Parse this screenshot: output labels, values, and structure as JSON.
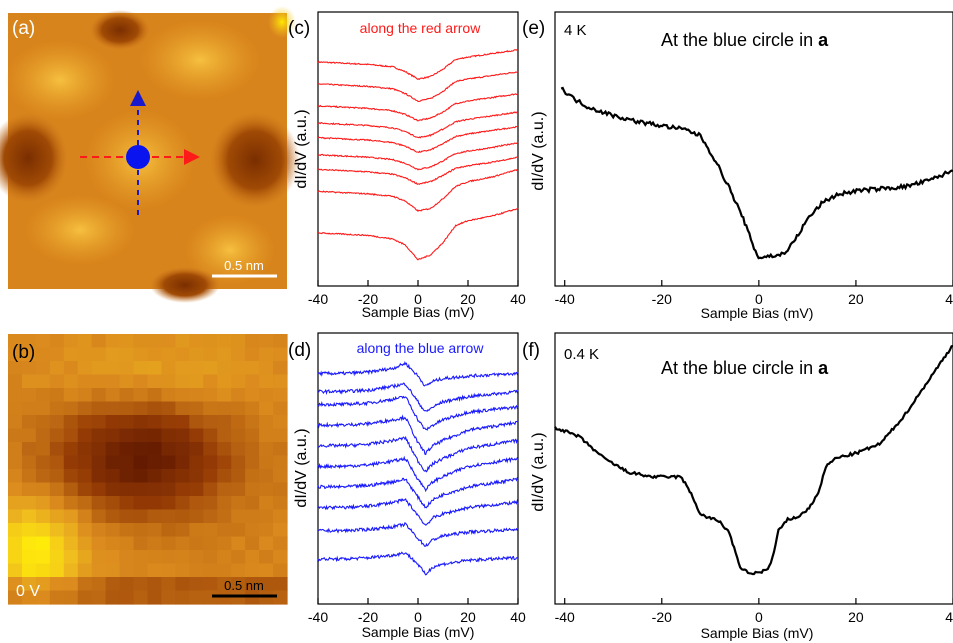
{
  "panels": {
    "a": {
      "label": "(a)",
      "scalebar": "0.5 nm"
    },
    "b": {
      "label": "(b)",
      "scalebar": "0.5 nm",
      "bias": "0 V"
    },
    "c": {
      "label": "(c)",
      "annotation": "along the red arrow",
      "color": "#ff1a1a"
    },
    "d": {
      "label": "(d)",
      "annotation": "along the blue arrow",
      "color": "#1a1aff"
    },
    "e": {
      "label": "(e)",
      "temperature": "4 K",
      "title_prefix": "At the blue circle in ",
      "title_bold": "a"
    },
    "f": {
      "label": "(f)",
      "temperature": "0.4 K",
      "title_prefix": "At the blue circle in ",
      "title_bold": "a"
    }
  },
  "axes": {
    "xlabel": "Sample Bias (mV)",
    "ylabel": "dI/dV (a.u.)",
    "small_ticks": [
      "-40",
      "-20",
      "0",
      "20",
      "40"
    ],
    "large_ticks": [
      "-40",
      "-20",
      "0",
      "20",
      "40"
    ]
  },
  "chart_data": [
    {
      "panel": "c",
      "type": "line",
      "xlabel": "Sample Bias (mV)",
      "ylabel": "dI/dV (a.u.)",
      "xlim": [
        -40,
        40
      ],
      "note": "vertically offset spectra, arbitrary units",
      "x": [
        -40,
        -30,
        -20,
        -10,
        -5,
        0,
        5,
        10,
        15,
        20,
        30,
        40
      ],
      "series": [
        {
          "values": [
            8.6,
            8.55,
            8.5,
            8.4,
            8.2,
            7.9,
            8.0,
            8.3,
            8.7,
            8.8,
            8.95,
            9.1
          ]
        },
        {
          "values": [
            7.7,
            7.65,
            7.6,
            7.5,
            7.3,
            7.0,
            7.1,
            7.4,
            7.8,
            7.9,
            8.05,
            8.2
          ]
        },
        {
          "values": [
            6.8,
            6.75,
            6.7,
            6.6,
            6.45,
            6.2,
            6.3,
            6.55,
            6.9,
            7.0,
            7.15,
            7.3
          ]
        },
        {
          "values": [
            6.1,
            6.05,
            6.0,
            5.9,
            5.75,
            5.5,
            5.6,
            5.85,
            6.15,
            6.25,
            6.4,
            6.55
          ]
        },
        {
          "values": [
            5.5,
            5.45,
            5.4,
            5.3,
            5.15,
            4.9,
            5.0,
            5.25,
            5.55,
            5.65,
            5.8,
            5.95
          ]
        },
        {
          "values": [
            4.8,
            4.75,
            4.7,
            4.6,
            4.45,
            4.2,
            4.3,
            4.55,
            4.85,
            4.95,
            5.1,
            5.3
          ]
        },
        {
          "values": [
            4.2,
            4.15,
            4.1,
            4.0,
            3.85,
            3.6,
            3.7,
            3.95,
            4.25,
            4.35,
            4.5,
            4.7
          ]
        },
        {
          "values": [
            3.3,
            3.25,
            3.2,
            3.1,
            2.9,
            2.5,
            2.6,
            3.0,
            3.5,
            3.7,
            3.9,
            4.2
          ]
        },
        {
          "values": [
            1.6,
            1.55,
            1.5,
            1.35,
            1.1,
            0.5,
            0.7,
            1.2,
            1.9,
            2.1,
            2.3,
            2.6
          ]
        }
      ]
    },
    {
      "panel": "d",
      "type": "line",
      "xlabel": "Sample Bias (mV)",
      "ylabel": "dI/dV (a.u.)",
      "xlim": [
        -40,
        40
      ],
      "note": "vertically offset spectra, arbitrary units",
      "x": [
        -40,
        -30,
        -20,
        -10,
        -5,
        0,
        3,
        6,
        10,
        20,
        30,
        40
      ],
      "series": [
        {
          "values": [
            9.4,
            9.4,
            9.45,
            9.6,
            9.8,
            9.3,
            8.9,
            9.1,
            9.2,
            9.3,
            9.35,
            9.4
          ]
        },
        {
          "values": [
            8.7,
            8.7,
            8.75,
            8.9,
            9.0,
            8.3,
            7.9,
            8.1,
            8.3,
            8.5,
            8.6,
            8.7
          ]
        },
        {
          "values": [
            8.2,
            8.2,
            8.25,
            8.4,
            8.5,
            7.6,
            7.2,
            7.4,
            7.6,
            7.9,
            8.0,
            8.1
          ]
        },
        {
          "values": [
            7.4,
            7.4,
            7.45,
            7.6,
            7.7,
            6.7,
            6.3,
            6.6,
            6.8,
            7.2,
            7.35,
            7.5
          ]
        },
        {
          "values": [
            6.6,
            6.6,
            6.65,
            6.8,
            6.9,
            6.0,
            5.6,
            5.9,
            6.1,
            6.5,
            6.65,
            6.8
          ]
        },
        {
          "values": [
            5.8,
            5.8,
            5.85,
            6.0,
            6.1,
            5.3,
            4.9,
            5.2,
            5.4,
            5.8,
            5.95,
            6.1
          ]
        },
        {
          "values": [
            5.0,
            5.0,
            5.05,
            5.2,
            5.3,
            4.6,
            4.2,
            4.5,
            4.7,
            5.0,
            5.15,
            5.3
          ]
        },
        {
          "values": [
            4.2,
            4.2,
            4.25,
            4.4,
            4.5,
            3.9,
            3.5,
            3.8,
            3.95,
            4.2,
            4.3,
            4.4
          ]
        },
        {
          "values": [
            3.3,
            3.3,
            3.35,
            3.45,
            3.55,
            3.0,
            2.7,
            2.95,
            3.1,
            3.25,
            3.3,
            3.35
          ]
        },
        {
          "values": [
            2.2,
            2.2,
            2.25,
            2.35,
            2.45,
            2.0,
            1.6,
            1.9,
            2.0,
            2.15,
            2.2,
            2.25
          ]
        }
      ]
    },
    {
      "panel": "e",
      "type": "line",
      "xlabel": "Sample Bias (mV)",
      "ylabel": "dI/dV (a.u.)",
      "xlim": [
        -42,
        40
      ],
      "x": [
        -41,
        -38,
        -35,
        -30,
        -25,
        -20,
        -15,
        -12,
        -9,
        -6,
        -3,
        -1,
        0,
        2,
        4,
        6,
        8,
        10,
        13,
        16,
        20,
        25,
        30,
        35,
        40
      ],
      "values": [
        8.9,
        8.3,
        7.9,
        7.5,
        7.2,
        7.0,
        6.8,
        6.5,
        5.3,
        3.9,
        2.3,
        1.0,
        0.5,
        0.6,
        0.6,
        0.9,
        1.6,
        2.4,
        3.2,
        3.6,
        3.8,
        3.9,
        4.0,
        4.3,
        4.8
      ]
    },
    {
      "panel": "f",
      "type": "line",
      "xlabel": "Sample Bias (mV)",
      "ylabel": "dI/dV (a.u.)",
      "xlim": [
        -42,
        40
      ],
      "x": [
        -42,
        -37,
        -32,
        -27,
        -22,
        -18,
        -16,
        -14,
        -12,
        -8,
        -6,
        -4,
        -2,
        0,
        2,
        3,
        4,
        6,
        8,
        10,
        12,
        14,
        16,
        20,
        25,
        30,
        35,
        40
      ],
      "values": [
        6.3,
        5.9,
        5.0,
        4.4,
        4.2,
        4.2,
        4.2,
        3.5,
        2.6,
        2.3,
        1.8,
        0.4,
        0.1,
        0.15,
        0.3,
        0.9,
        1.9,
        2.4,
        2.5,
        2.8,
        3.4,
        4.7,
        5.0,
        5.2,
        5.6,
        6.8,
        8.3,
        9.8
      ]
    }
  ]
}
